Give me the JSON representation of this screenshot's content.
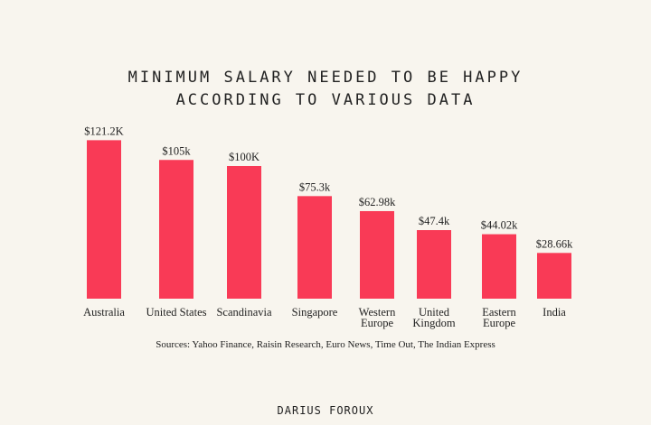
{
  "chart_data": {
    "type": "bar",
    "title": "MINIMUM SALARY NEEDED TO BE HAPPY ACCORDING TO VARIOUS DATA",
    "title_lines": [
      "MINIMUM SALARY NEEDED TO BE HAPPY",
      "ACCORDING TO VARIOUS DATA"
    ],
    "categories": [
      "Australia",
      "United States",
      "Scandinavia",
      "Singapore",
      "Western Europe",
      "United Kingdom",
      "Eastern Europe",
      "India"
    ],
    "category_lines": [
      [
        "Australia"
      ],
      [
        "United States"
      ],
      [
        "Scandinavia"
      ],
      [
        "Singapore"
      ],
      [
        "Western",
        "Europe"
      ],
      [
        "United",
        "Kingdom"
      ],
      [
        "Eastern",
        "Europe"
      ],
      [
        "India"
      ]
    ],
    "values": [
      121.2,
      105,
      100,
      75.3,
      62.98,
      47.4,
      44.02,
      28.66
    ],
    "data_labels": [
      "$121.2K",
      "$105k",
      "$100K",
      "$75.3k",
      "$62.98k",
      "$47.4k",
      "$44.02k",
      "$28.66k"
    ],
    "unit": "thousand USD",
    "bar_color": "#f93a56",
    "grid": false,
    "axes_visible": false
  },
  "sources": "Sources: Yahoo Finance, Raisin Research, Euro News, Time Out, The Indian Express",
  "logo": "DARIUS FOROUX"
}
